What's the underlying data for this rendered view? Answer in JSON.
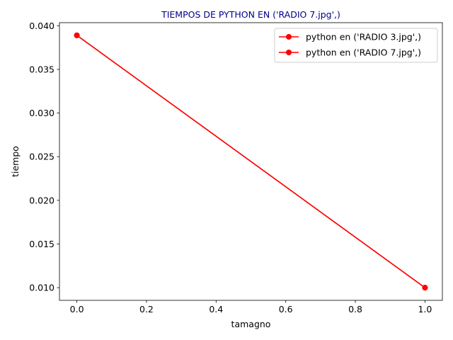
{
  "chart_data": {
    "type": "line",
    "title": "TIEMPOS DE PYTHON EN ('RADIO 7.jpg',)",
    "title_color": "#00008b",
    "xlabel": "tamagno",
    "ylabel": "tiempo",
    "xlim": [
      -0.05,
      1.05
    ],
    "ylim": [
      0.00855,
      0.04035
    ],
    "xticks": [
      0.0,
      0.2,
      0.4,
      0.6,
      0.8,
      1.0
    ],
    "xtick_labels": [
      "0.0",
      "0.2",
      "0.4",
      "0.6",
      "0.8",
      "1.0"
    ],
    "yticks": [
      0.01,
      0.015,
      0.02,
      0.025,
      0.03,
      0.035,
      0.04
    ],
    "ytick_labels": [
      "0.010",
      "0.015",
      "0.020",
      "0.025",
      "0.030",
      "0.035",
      "0.040"
    ],
    "grid": false,
    "legend_position": "upper-right",
    "series": [
      {
        "name": "python en ('RADIO 3.jpg',)",
        "color": "#ff0000",
        "marker": "circle",
        "x": [
          0.0,
          1.0
        ],
        "y": [
          0.0389,
          0.01
        ]
      },
      {
        "name": "python en ('RADIO 7.jpg',)",
        "color": "#ff0000",
        "marker": "circle",
        "x": [
          0.0,
          1.0
        ],
        "y": [
          0.0389,
          0.01
        ]
      }
    ]
  }
}
